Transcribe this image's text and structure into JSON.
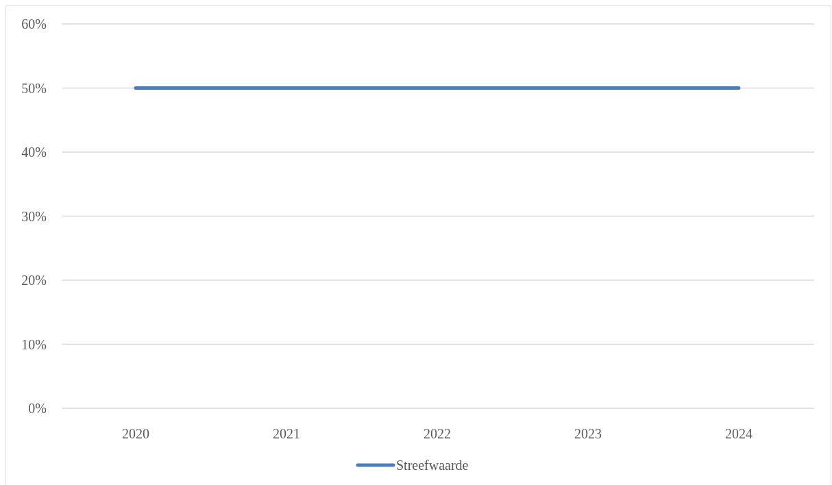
{
  "chart_data": {
    "type": "line",
    "categories": [
      "2020",
      "2021",
      "2022",
      "2023",
      "2024"
    ],
    "series": [
      {
        "name": "Streefwaarde",
        "color": "#4a7ebb",
        "values": [
          50,
          50,
          50,
          50,
          50
        ]
      }
    ],
    "ylim": [
      0,
      60
    ],
    "yticks": [
      {
        "value": 0,
        "label": "0%"
      },
      {
        "value": 10,
        "label": "10%"
      },
      {
        "value": 20,
        "label": "20%"
      },
      {
        "value": 30,
        "label": "30%"
      },
      {
        "value": 40,
        "label": "40%"
      },
      {
        "value": 50,
        "label": "50%"
      },
      {
        "value": 60,
        "label": "60%"
      }
    ],
    "grid": "y",
    "legend": "bottom",
    "marker": "none",
    "line_style": "solid"
  }
}
